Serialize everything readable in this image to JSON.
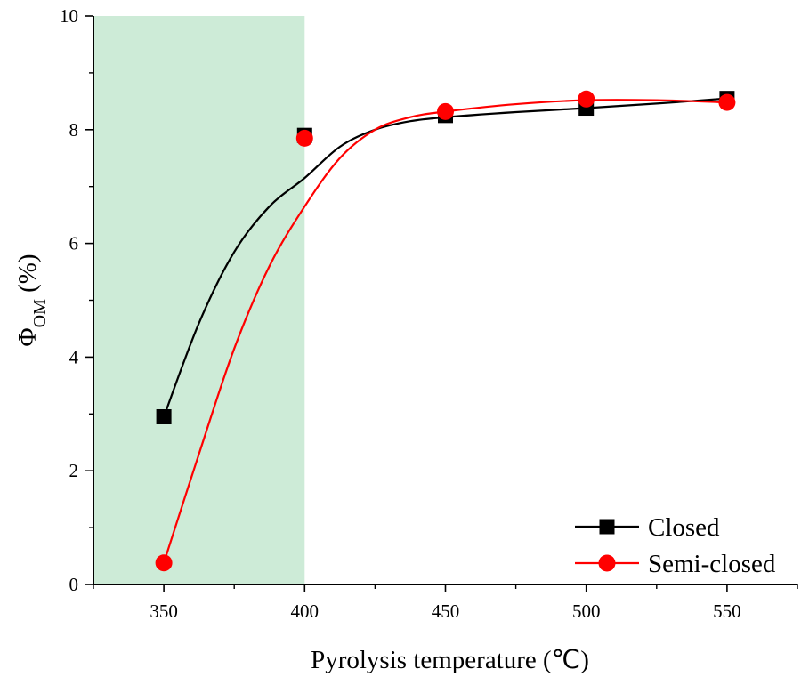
{
  "chart_data": {
    "type": "line",
    "title": "",
    "xlabel": "Pyrolysis temperature (℃)",
    "ylabel": {
      "main": "Φ",
      "subscript": "OM",
      "suffix": " (%)"
    },
    "xlim": [
      325,
      575
    ],
    "ylim": [
      0,
      10
    ],
    "x_ticks": [
      350,
      400,
      450,
      500,
      550
    ],
    "x_ticks_minor": [
      325,
      375,
      425,
      475,
      525,
      575
    ],
    "y_ticks": [
      0,
      2,
      4,
      6,
      8,
      10
    ],
    "y_ticks_minor": [
      1,
      3,
      5,
      7,
      9
    ],
    "grid": false,
    "legend_position": "bottom-right",
    "shaded_region": {
      "x_range": [
        325,
        400
      ],
      "color": "#cdebd7"
    },
    "series": [
      {
        "name": "Closed",
        "marker": "square",
        "color": "#000000",
        "x": [
          350,
          400,
          450,
          500,
          550
        ],
        "y": [
          2.95,
          7.9,
          8.25,
          8.38,
          8.55
        ],
        "fit_curve": {
          "x": [
            350,
            362.5,
            375,
            387.5,
            400,
            412.5,
            425,
            437.5,
            450,
            475,
            500,
            525,
            550
          ],
          "y": [
            2.95,
            4.6,
            5.85,
            6.65,
            7.15,
            7.7,
            8.0,
            8.15,
            8.22,
            8.31,
            8.38,
            8.46,
            8.55
          ]
        }
      },
      {
        "name": "Semi-closed",
        "marker": "circle",
        "color": "#ff0000",
        "x": [
          350,
          400,
          450,
          500,
          550
        ],
        "y": [
          0.38,
          7.85,
          8.32,
          8.54,
          8.48
        ],
        "fit_curve": {
          "x": [
            350,
            362.5,
            375,
            387.5,
            400,
            412.5,
            425,
            437.5,
            450,
            475,
            500,
            525,
            550
          ],
          "y": [
            0.38,
            2.3,
            4.15,
            5.6,
            6.65,
            7.5,
            8.0,
            8.22,
            8.32,
            8.45,
            8.52,
            8.52,
            8.48
          ]
        }
      }
    ]
  }
}
